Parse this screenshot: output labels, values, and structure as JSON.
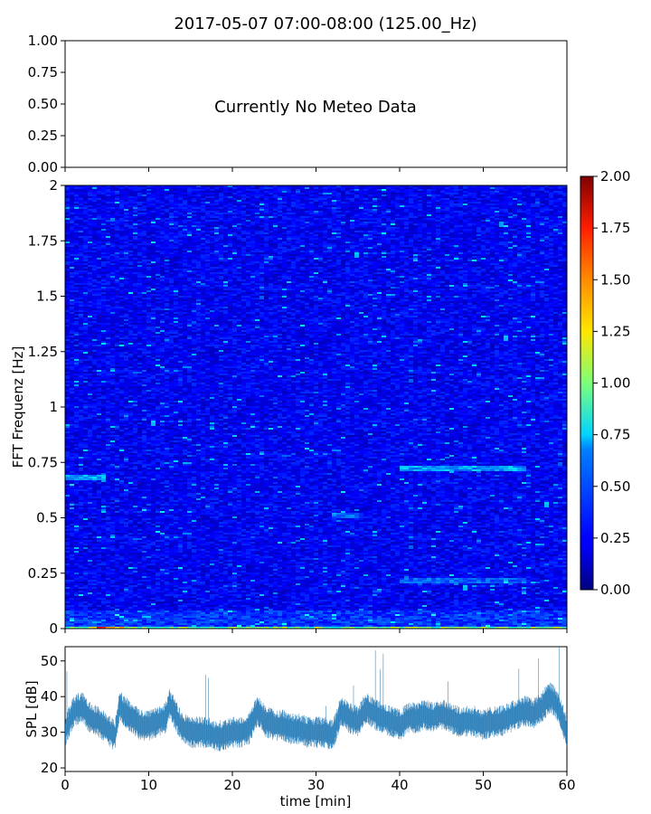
{
  "title": "2017-05-07 07:00-08:00 (125.00_Hz)",
  "chart_data": [
    {
      "type": "line",
      "panel": "meteo",
      "message": "Currently No Meteo Data",
      "ylim": [
        0,
        1
      ],
      "y_ticks": [
        "0.00",
        "0.25",
        "0.50",
        "0.75",
        "1.00"
      ],
      "series": []
    },
    {
      "type": "heatmap",
      "panel": "spectrogram",
      "ylabel": "FFT Frequenz [Hz]",
      "ylim": [
        0,
        2
      ],
      "y_ticks": [
        "0",
        "0.25",
        "0.5",
        "0.75",
        "1",
        "1.25",
        "1.5",
        "1.75",
        "2"
      ],
      "xlim": [
        0,
        60
      ],
      "colormap": "jet",
      "color_range": [
        0,
        2
      ],
      "colorbar_ticks": [
        "0.00",
        "0.25",
        "0.50",
        "0.75",
        "1.00",
        "1.25",
        "1.50",
        "1.75",
        "2.00"
      ],
      "features": [
        {
          "time_min": [
            0,
            5
          ],
          "freq_hz": 0.68,
          "level": 0.7
        },
        {
          "time_min": [
            40,
            55
          ],
          "freq_hz": 0.72,
          "level": 0.7
        },
        {
          "time_min": [
            32,
            35
          ],
          "freq_hz": 0.51,
          "level": 0.6
        },
        {
          "time_min": [
            40,
            55
          ],
          "freq_hz": 0.22,
          "level": 0.55
        },
        {
          "time_min": [
            0,
            60
          ],
          "freq_hz": 0.0,
          "level": 1.2
        },
        {
          "time_min": [
            3,
            7
          ],
          "freq_hz": 0.0,
          "level": 1.8
        },
        {
          "time_min": [
            30,
            31
          ],
          "freq_hz": 0.0,
          "level": 1.8
        }
      ]
    },
    {
      "type": "line",
      "panel": "spl",
      "ylabel": "SPL [dB]",
      "xlabel": "time [min]",
      "xlim": [
        0,
        60
      ],
      "ylim": [
        19,
        54
      ],
      "y_ticks": [
        "20",
        "30",
        "40",
        "50"
      ],
      "x_ticks": [
        "0",
        "10",
        "20",
        "30",
        "40",
        "50",
        "60"
      ],
      "series": [
        {
          "x": [
            0,
            1,
            2,
            3,
            4,
            5,
            6,
            6.5,
            7,
            8,
            9,
            10,
            11,
            12,
            12.5,
            13,
            14,
            15,
            16,
            17,
            18,
            19,
            20,
            21,
            22,
            23,
            24,
            25,
            26,
            27,
            28,
            29,
            30,
            31,
            32,
            33,
            34,
            35,
            36,
            37,
            38,
            39,
            40,
            41,
            42,
            43,
            44,
            45,
            46,
            47,
            48,
            49,
            50,
            51,
            52,
            53,
            54,
            55,
            56,
            57,
            58,
            59,
            60
          ],
          "values": [
            30,
            36,
            37,
            34,
            33,
            31,
            29,
            38,
            36,
            34,
            32,
            32,
            33,
            34,
            38,
            36,
            31,
            30,
            30,
            30,
            29,
            29,
            30,
            30,
            31,
            36,
            33,
            32,
            32,
            31,
            31,
            30,
            30,
            30,
            29,
            36,
            34,
            33,
            37,
            35,
            34,
            33,
            32,
            34,
            34,
            35,
            34,
            35,
            34,
            33,
            33,
            33,
            32,
            33,
            33,
            34,
            35,
            36,
            35,
            37,
            40,
            37,
            30
          ],
          "noise_band_db": 4
        }
      ]
    }
  ]
}
